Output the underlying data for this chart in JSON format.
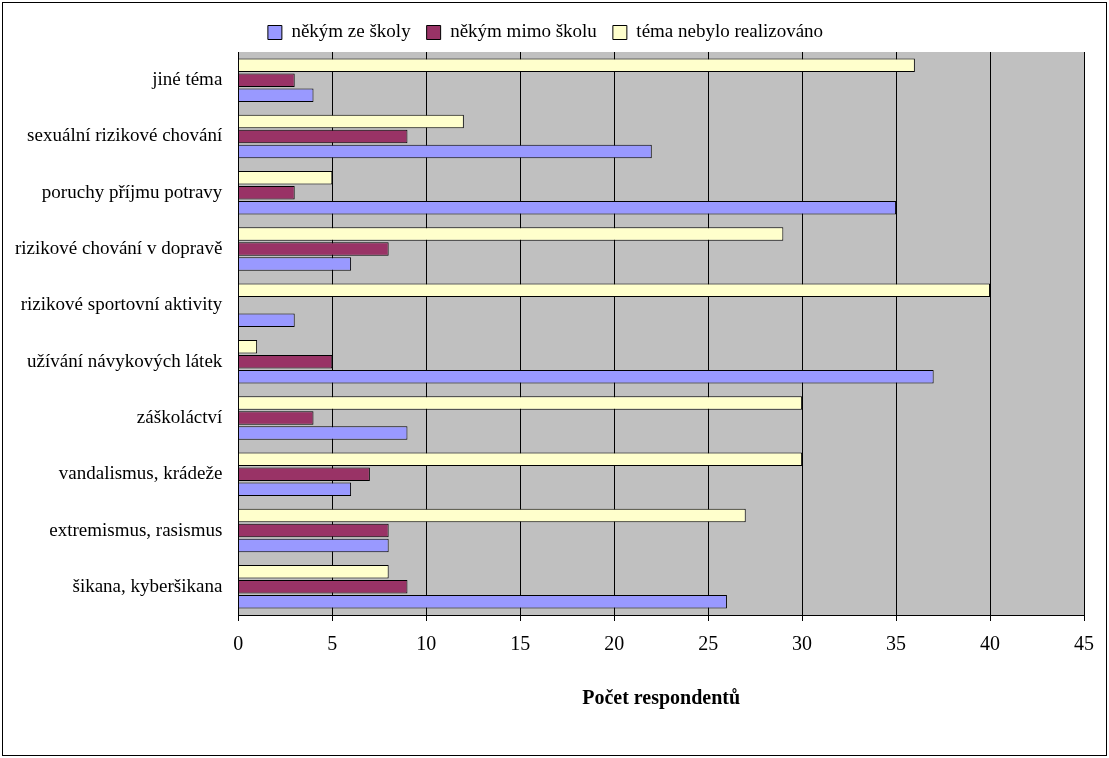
{
  "chart_data": {
    "type": "bar",
    "orientation": "horizontal",
    "xlabel": "Počet respondentů",
    "categories": [
      "jiné téma",
      "sexuální rizikové chování",
      "poruchy příjmu potravy",
      "rizikové chování v dopravě",
      "rizikové sportovní aktivity",
      "užívání návykových látek",
      "záškoláctví",
      "vandalismus, krádeže",
      "extremismus, rasismus",
      "šikana, kyberšikana"
    ],
    "series": [
      {
        "name": "někým ze školy",
        "color": "#9999ff",
        "values": [
          4,
          22,
          35,
          6,
          3,
          37,
          9,
          6,
          8,
          26
        ]
      },
      {
        "name": "někým mimo školu",
        "color": "#993366",
        "values": [
          3,
          9,
          3,
          8,
          0,
          5,
          4,
          7,
          8,
          9
        ]
      },
      {
        "name": "téma nebylo realizováno",
        "color": "#ffffcc",
        "values": [
          36,
          12,
          5,
          29,
          40,
          1,
          30,
          30,
          27,
          8
        ]
      }
    ],
    "xlim": [
      0,
      45
    ],
    "xticks": [
      0,
      5,
      10,
      15,
      20,
      25,
      30,
      35,
      40,
      45
    ],
    "grid": "x",
    "legend": "top"
  }
}
